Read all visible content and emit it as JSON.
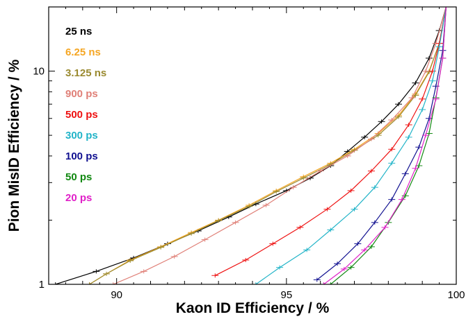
{
  "chart_data": {
    "type": "line",
    "xlabel": "Kaon ID Efficiency / %",
    "ylabel": "Pion MisID Efficiency / %",
    "xlim": [
      88,
      100
    ],
    "ylim": [
      1,
      20
    ],
    "yscale": "log",
    "x_ticks": [
      90,
      95,
      100
    ],
    "y_ticks": [
      1,
      10
    ],
    "grid": false,
    "legend_position": "top-left",
    "series": [
      {
        "name": "25 ns",
        "color": "#000000",
        "x": [
          88.2,
          89.4,
          90.5,
          91.5,
          92.4,
          93.3,
          94.1,
          95.0,
          95.7,
          96.3,
          96.8,
          97.3,
          97.8,
          98.3,
          98.8,
          99.2,
          99.5,
          99.7
        ],
        "y": [
          1.0,
          1.15,
          1.33,
          1.55,
          1.78,
          2.07,
          2.38,
          2.75,
          3.15,
          3.6,
          4.2,
          4.9,
          5.8,
          7.0,
          8.8,
          11.5,
          15.5,
          20
        ]
      },
      {
        "name": "6.25 ns",
        "color": "#f5a623",
        "x": [
          89.2,
          89.7,
          90.4,
          91.3,
          92.2,
          93.0,
          93.9,
          94.7,
          95.5,
          96.3,
          97.0,
          97.7,
          98.3,
          98.8,
          99.2,
          99.5,
          99.7
        ],
        "y": [
          1.0,
          1.12,
          1.3,
          1.5,
          1.75,
          2.0,
          2.35,
          2.75,
          3.2,
          3.7,
          4.3,
          5.1,
          6.2,
          7.8,
          10.0,
          13.5,
          20
        ]
      },
      {
        "name": "3.125 ns",
        "color": "#9a8a30",
        "x": [
          89.2,
          89.7,
          90.4,
          91.3,
          92.2,
          93.0,
          93.9,
          94.7,
          95.5,
          96.3,
          97.0,
          97.7,
          98.3,
          98.8,
          99.2,
          99.5,
          99.7
        ],
        "y": [
          1.0,
          1.12,
          1.29,
          1.49,
          1.73,
          1.99,
          2.32,
          2.72,
          3.15,
          3.65,
          4.25,
          5.0,
          6.1,
          7.7,
          9.9,
          13.5,
          20
        ]
      },
      {
        "name": "900 ps",
        "color": "#e08078",
        "x": [
          89.9,
          90.8,
          91.7,
          92.6,
          93.5,
          94.4,
          95.2,
          96.0,
          96.8,
          97.5,
          98.1,
          98.7,
          99.1,
          99.4,
          99.7
        ],
        "y": [
          1.0,
          1.15,
          1.35,
          1.62,
          1.95,
          2.35,
          2.85,
          3.4,
          4.0,
          4.8,
          5.9,
          7.5,
          10.0,
          13.5,
          20
        ]
      },
      {
        "name": "500 ps",
        "color": "#ee1111",
        "x": [
          92.9,
          93.8,
          94.6,
          95.4,
          96.2,
          96.9,
          97.5,
          98.1,
          98.6,
          99.0,
          99.3,
          99.5,
          99.7
        ],
        "y": [
          1.1,
          1.3,
          1.55,
          1.85,
          2.25,
          2.75,
          3.4,
          4.3,
          5.6,
          7.4,
          10.0,
          13.5,
          20
        ]
      },
      {
        "name": "300 ps",
        "color": "#22b4c8",
        "x": [
          94.1,
          94.8,
          95.6,
          96.3,
          97.0,
          97.6,
          98.1,
          98.6,
          99.0,
          99.3,
          99.5,
          99.7
        ],
        "y": [
          1.0,
          1.2,
          1.45,
          1.8,
          2.25,
          2.85,
          3.7,
          4.9,
          6.6,
          9.0,
          13.0,
          20
        ]
      },
      {
        "name": "100 ps",
        "color": "#101090",
        "x": [
          95.9,
          96.5,
          97.1,
          97.6,
          98.1,
          98.5,
          98.9,
          99.2,
          99.4,
          99.6,
          99.7
        ],
        "y": [
          1.05,
          1.25,
          1.55,
          1.95,
          2.5,
          3.3,
          4.4,
          6.0,
          8.5,
          12.5,
          20
        ]
      },
      {
        "name": "50 ps",
        "color": "#118811",
        "x": [
          96.3,
          96.9,
          97.5,
          98.0,
          98.5,
          98.9,
          99.2,
          99.4,
          99.6,
          99.7
        ],
        "y": [
          1.0,
          1.2,
          1.5,
          1.95,
          2.6,
          3.6,
          5.1,
          7.5,
          11.5,
          20
        ]
      },
      {
        "name": "20 ps",
        "color": "#e020c8",
        "x": [
          96.1,
          96.7,
          97.3,
          97.9,
          98.4,
          98.8,
          99.1,
          99.4,
          99.6,
          99.7
        ],
        "y": [
          1.0,
          1.18,
          1.45,
          1.85,
          2.5,
          3.5,
          5.0,
          7.4,
          11.5,
          20
        ]
      }
    ]
  }
}
